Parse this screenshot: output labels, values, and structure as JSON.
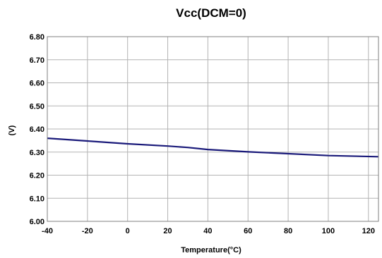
{
  "chart_data": {
    "type": "line",
    "title": "Vcc(DCM=0)",
    "xlabel": "Temperature(°C)",
    "ylabel": "(V)",
    "xlim": [
      -40,
      125
    ],
    "ylim": [
      6.0,
      6.8
    ],
    "x_ticks": [
      "-40",
      "-20",
      "0",
      "20",
      "40",
      "60",
      "80",
      "100",
      "120"
    ],
    "y_ticks": [
      "6.00",
      "6.10",
      "6.20",
      "6.30",
      "6.40",
      "6.50",
      "6.60",
      "6.70",
      "6.80"
    ],
    "grid": true,
    "series": [
      {
        "color": "#1a1a7a",
        "x": [
          -40,
          -20,
          0,
          20,
          30,
          40,
          60,
          80,
          100,
          125
        ],
        "y": [
          6.36,
          6.348,
          6.336,
          6.326,
          6.32,
          6.311,
          6.301,
          6.293,
          6.285,
          6.28
        ]
      }
    ]
  }
}
